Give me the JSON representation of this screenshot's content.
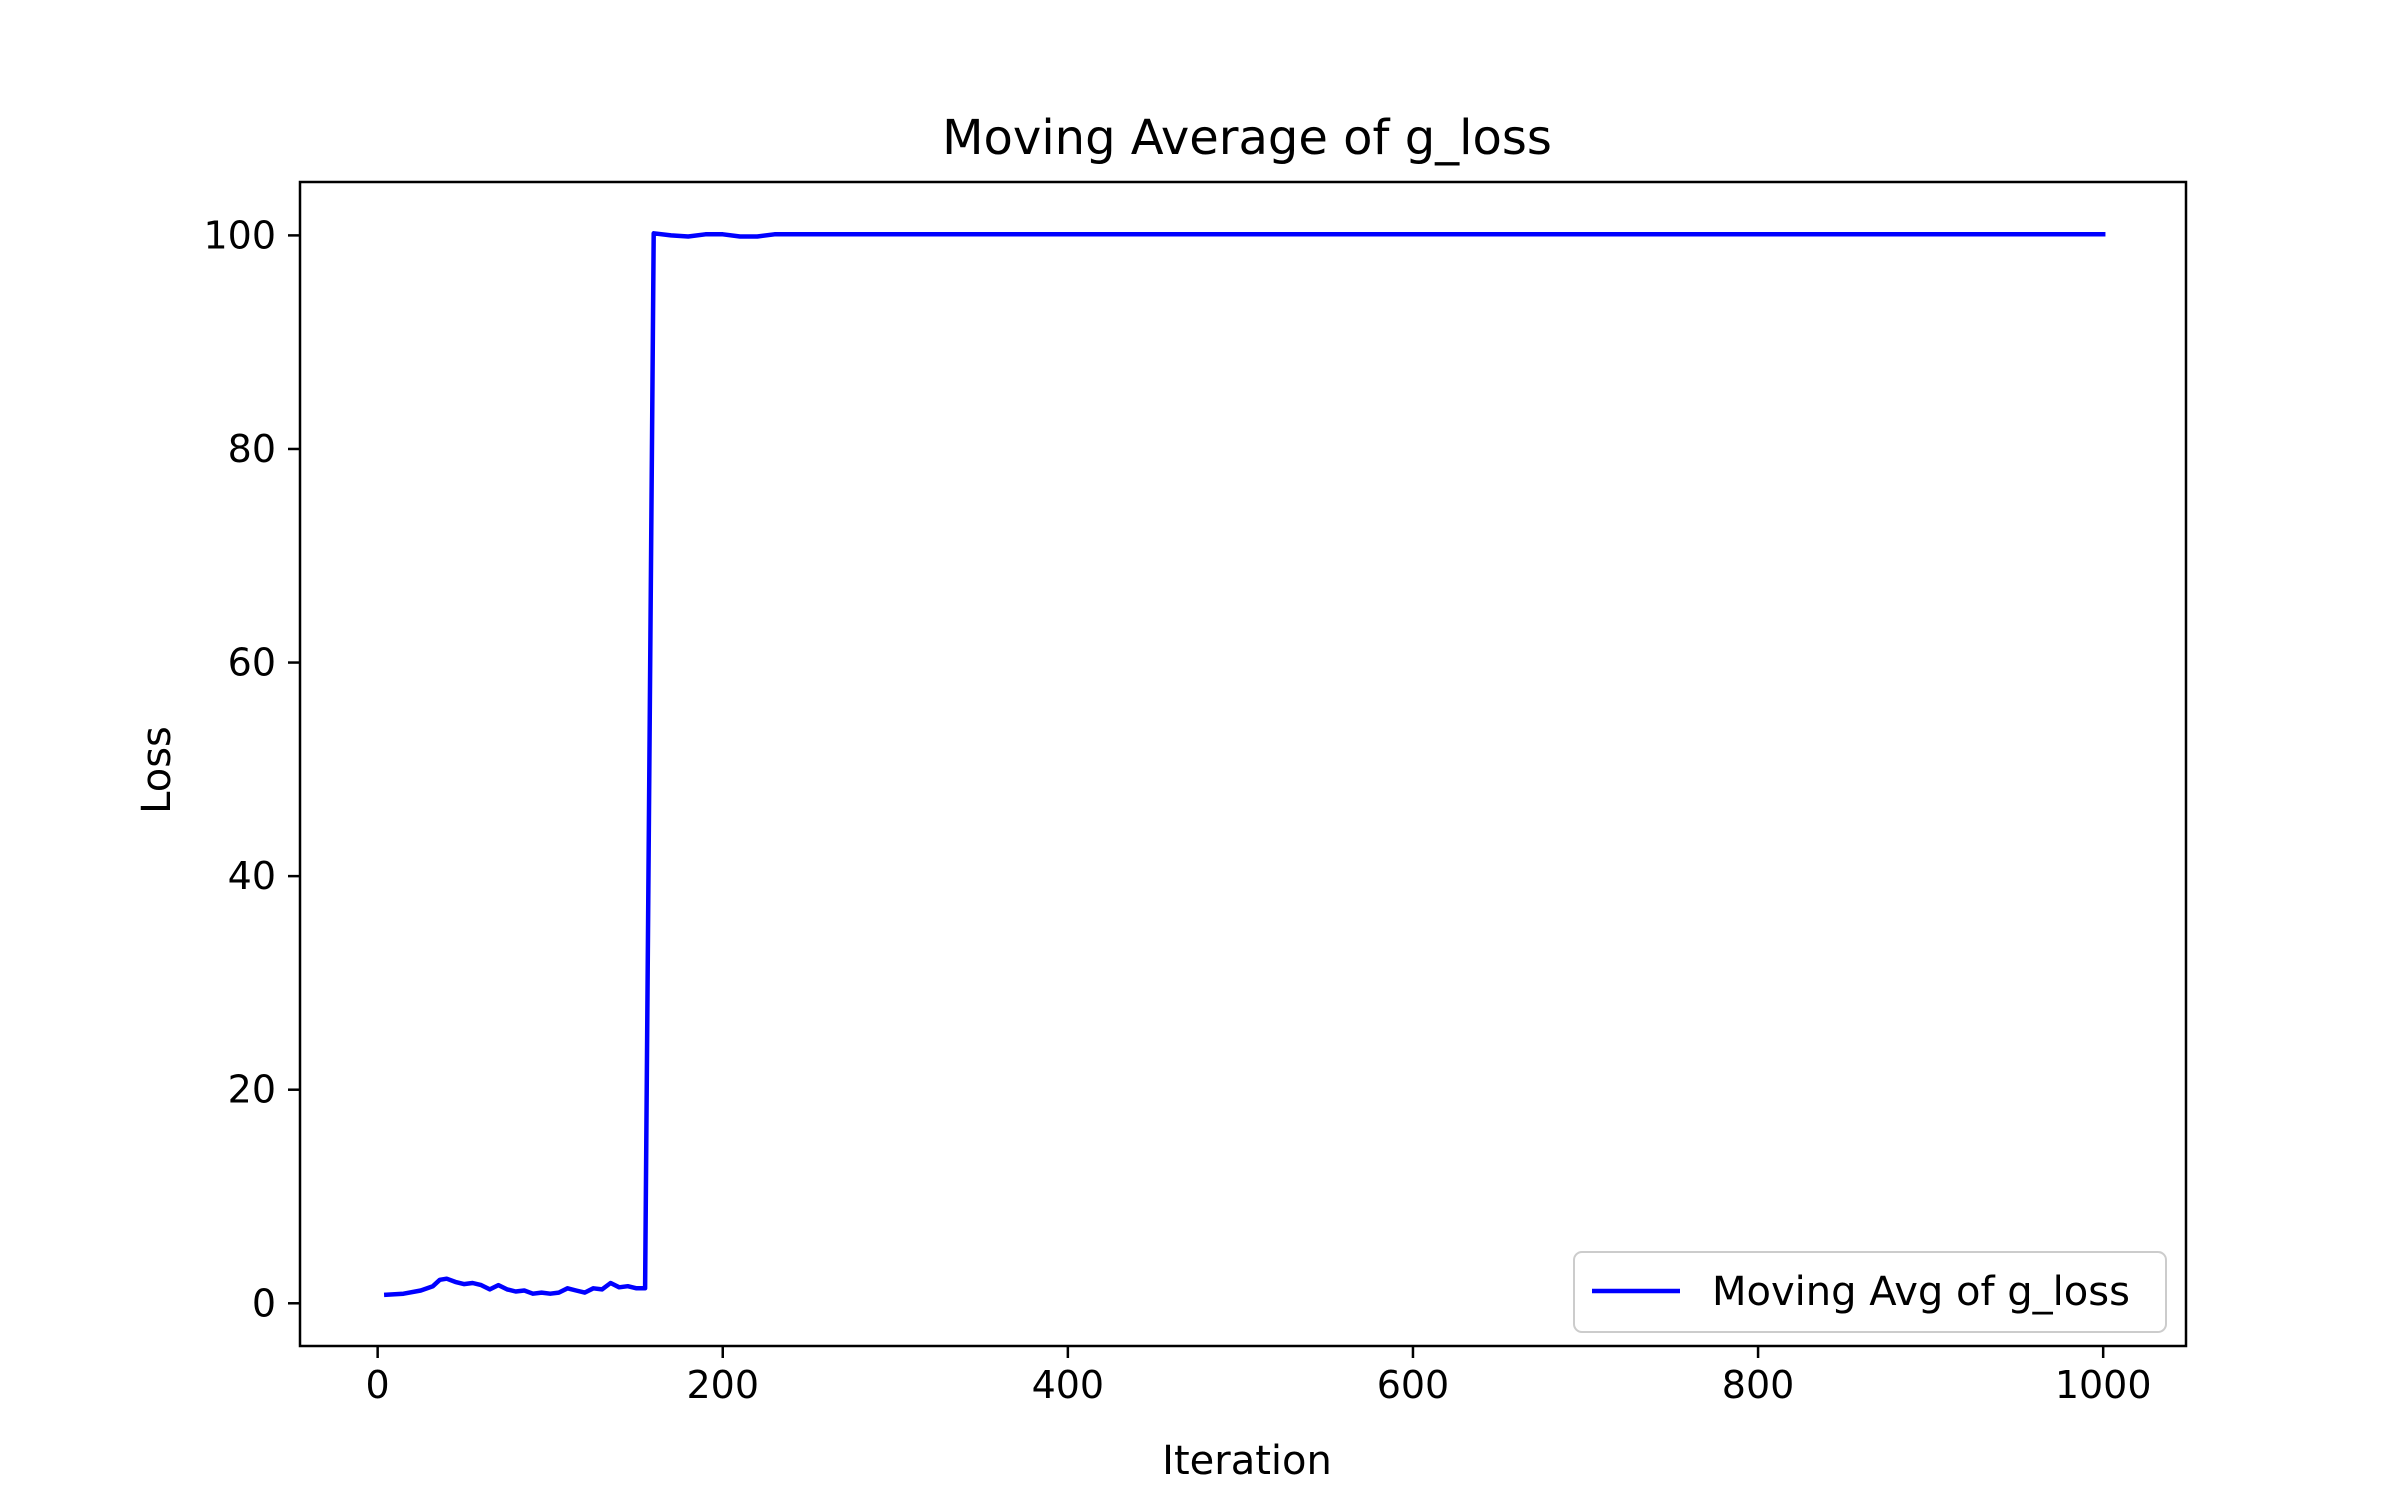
{
  "chart_data": {
    "type": "line",
    "title": "Moving Average of g_loss",
    "xlabel": "Iteration",
    "ylabel": "Loss",
    "xlim": [
      -45,
      1048
    ],
    "ylim": [
      -4,
      105
    ],
    "xticks": [
      0,
      200,
      400,
      600,
      800,
      1000
    ],
    "yticks": [
      0,
      20,
      40,
      60,
      80,
      100
    ],
    "xtick_labels": [
      "0",
      "200",
      "400",
      "600",
      "800",
      "1000"
    ],
    "ytick_labels": [
      "0",
      "20",
      "40",
      "60",
      "80",
      "100"
    ],
    "grid": false,
    "legend": {
      "placement": "lower-right",
      "entries": [
        "Moving Avg of g_loss"
      ]
    },
    "series": [
      {
        "name": "Moving Avg of g_loss",
        "color": "#0000ff",
        "x": [
          5,
          15,
          25,
          32,
          36,
          40,
          45,
          50,
          55,
          60,
          65,
          70,
          75,
          80,
          85,
          90,
          95,
          100,
          105,
          110,
          115,
          120,
          125,
          130,
          135,
          140,
          145,
          150,
          155,
          160,
          170,
          180,
          190,
          200,
          210,
          220,
          230,
          300,
          400,
          500,
          600,
          700,
          800,
          900,
          1000
        ],
        "y": [
          0.8,
          0.9,
          1.2,
          1.6,
          2.2,
          2.3,
          2.0,
          1.8,
          1.9,
          1.7,
          1.3,
          1.7,
          1.3,
          1.1,
          1.2,
          0.9,
          1.0,
          0.9,
          1.0,
          1.4,
          1.2,
          1.0,
          1.4,
          1.3,
          1.9,
          1.5,
          1.6,
          1.4,
          1.4,
          100.2,
          100.0,
          99.9,
          100.1,
          100.1,
          99.9,
          99.9,
          100.1,
          100.1,
          100.1,
          100.1,
          100.1,
          100.1,
          100.1,
          100.1,
          100.1
        ]
      }
    ]
  }
}
